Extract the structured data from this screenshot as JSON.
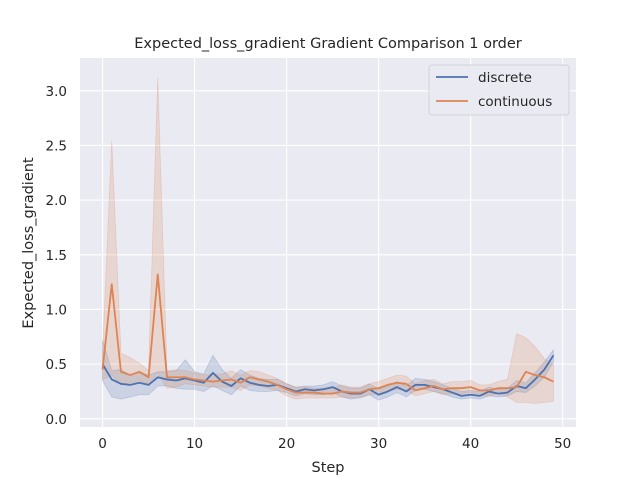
{
  "chart_data": {
    "type": "line",
    "title": "Expected_loss_gradient Gradient Comparison 1 order",
    "xlabel": "Step",
    "ylabel": "Expected_loss_gradient",
    "xlim": [
      -2.45,
      51.45
    ],
    "ylim": [
      -0.075,
      3.3
    ],
    "x_ticks": [
      0,
      10,
      20,
      30,
      40,
      50
    ],
    "y_ticks": [
      0.0,
      0.5,
      1.0,
      1.5,
      2.0,
      2.5,
      3.0
    ],
    "x_tick_labels": [
      "0",
      "10",
      "20",
      "30",
      "40",
      "50"
    ],
    "y_tick_labels": [
      "0.0",
      "0.5",
      "1.0",
      "1.5",
      "2.0",
      "2.5",
      "3.0"
    ],
    "grid": true,
    "background": "#eaeaf2",
    "legend_position": "top-right",
    "x": [
      0,
      1,
      2,
      3,
      4,
      5,
      6,
      7,
      8,
      9,
      10,
      11,
      12,
      13,
      14,
      15,
      16,
      17,
      18,
      19,
      20,
      21,
      22,
      23,
      24,
      25,
      26,
      27,
      28,
      29,
      30,
      31,
      32,
      33,
      34,
      35,
      36,
      37,
      38,
      39,
      40,
      41,
      42,
      43,
      44,
      45,
      46,
      47,
      48,
      49
    ],
    "series": [
      {
        "name": "discrete",
        "color": "#4c72b0",
        "values": [
          0.5,
          0.36,
          0.32,
          0.31,
          0.33,
          0.31,
          0.38,
          0.36,
          0.35,
          0.37,
          0.35,
          0.33,
          0.42,
          0.34,
          0.3,
          0.37,
          0.33,
          0.31,
          0.3,
          0.31,
          0.28,
          0.25,
          0.27,
          0.26,
          0.27,
          0.29,
          0.25,
          0.23,
          0.23,
          0.27,
          0.22,
          0.25,
          0.29,
          0.25,
          0.31,
          0.31,
          0.29,
          0.27,
          0.24,
          0.21,
          0.22,
          0.21,
          0.25,
          0.23,
          0.24,
          0.3,
          0.28,
          0.36,
          0.45,
          0.58
        ],
        "lower": [
          0.35,
          0.2,
          0.18,
          0.2,
          0.22,
          0.22,
          0.3,
          0.3,
          0.28,
          0.27,
          0.27,
          0.25,
          0.3,
          0.26,
          0.22,
          0.3,
          0.26,
          0.25,
          0.25,
          0.26,
          0.24,
          0.21,
          0.23,
          0.22,
          0.22,
          0.24,
          0.2,
          0.18,
          0.19,
          0.22,
          0.17,
          0.2,
          0.24,
          0.2,
          0.26,
          0.27,
          0.25,
          0.23,
          0.2,
          0.18,
          0.19,
          0.18,
          0.21,
          0.2,
          0.21,
          0.25,
          0.24,
          0.3,
          0.38,
          0.52
        ],
        "upper": [
          0.72,
          0.44,
          0.45,
          0.4,
          0.43,
          0.4,
          0.43,
          0.43,
          0.44,
          0.54,
          0.43,
          0.41,
          0.58,
          0.45,
          0.37,
          0.45,
          0.4,
          0.37,
          0.36,
          0.36,
          0.32,
          0.29,
          0.3,
          0.3,
          0.31,
          0.34,
          0.3,
          0.28,
          0.28,
          0.32,
          0.27,
          0.3,
          0.34,
          0.3,
          0.37,
          0.36,
          0.34,
          0.31,
          0.28,
          0.25,
          0.26,
          0.25,
          0.29,
          0.27,
          0.28,
          0.35,
          0.33,
          0.42,
          0.52,
          0.63
        ]
      },
      {
        "name": "continuous",
        "color": "#dd8452",
        "values": [
          0.45,
          1.23,
          0.43,
          0.4,
          0.43,
          0.38,
          1.32,
          0.38,
          0.38,
          0.38,
          0.36,
          0.35,
          0.34,
          0.35,
          0.36,
          0.33,
          0.38,
          0.36,
          0.34,
          0.31,
          0.27,
          0.24,
          0.24,
          0.24,
          0.23,
          0.23,
          0.25,
          0.24,
          0.24,
          0.27,
          0.28,
          0.31,
          0.33,
          0.32,
          0.26,
          0.28,
          0.3,
          0.27,
          0.28,
          0.28,
          0.29,
          0.26,
          0.26,
          0.28,
          0.28,
          0.29,
          0.43,
          0.4,
          0.38,
          0.34
        ],
        "lower": [
          0.36,
          0.4,
          0.31,
          0.33,
          0.35,
          0.32,
          0.42,
          0.28,
          0.29,
          0.32,
          0.31,
          0.3,
          0.29,
          0.29,
          0.29,
          0.26,
          0.31,
          0.3,
          0.28,
          0.26,
          0.21,
          0.18,
          0.19,
          0.19,
          0.19,
          0.19,
          0.2,
          0.19,
          0.2,
          0.22,
          0.23,
          0.25,
          0.27,
          0.26,
          0.21,
          0.23,
          0.25,
          0.22,
          0.23,
          0.23,
          0.24,
          0.21,
          0.21,
          0.23,
          0.2,
          0.15,
          0.15,
          0.14,
          0.15,
          0.16
        ],
        "upper": [
          0.62,
          2.54,
          0.6,
          0.56,
          0.51,
          0.44,
          3.12,
          0.44,
          0.45,
          0.44,
          0.42,
          0.4,
          0.41,
          0.41,
          0.44,
          0.4,
          0.44,
          0.43,
          0.4,
          0.37,
          0.32,
          0.29,
          0.29,
          0.28,
          0.28,
          0.28,
          0.31,
          0.29,
          0.29,
          0.32,
          0.34,
          0.37,
          0.4,
          0.39,
          0.32,
          0.35,
          0.36,
          0.32,
          0.34,
          0.34,
          0.35,
          0.31,
          0.31,
          0.34,
          0.36,
          0.78,
          0.74,
          0.66,
          0.55,
          0.5
        ]
      }
    ]
  }
}
